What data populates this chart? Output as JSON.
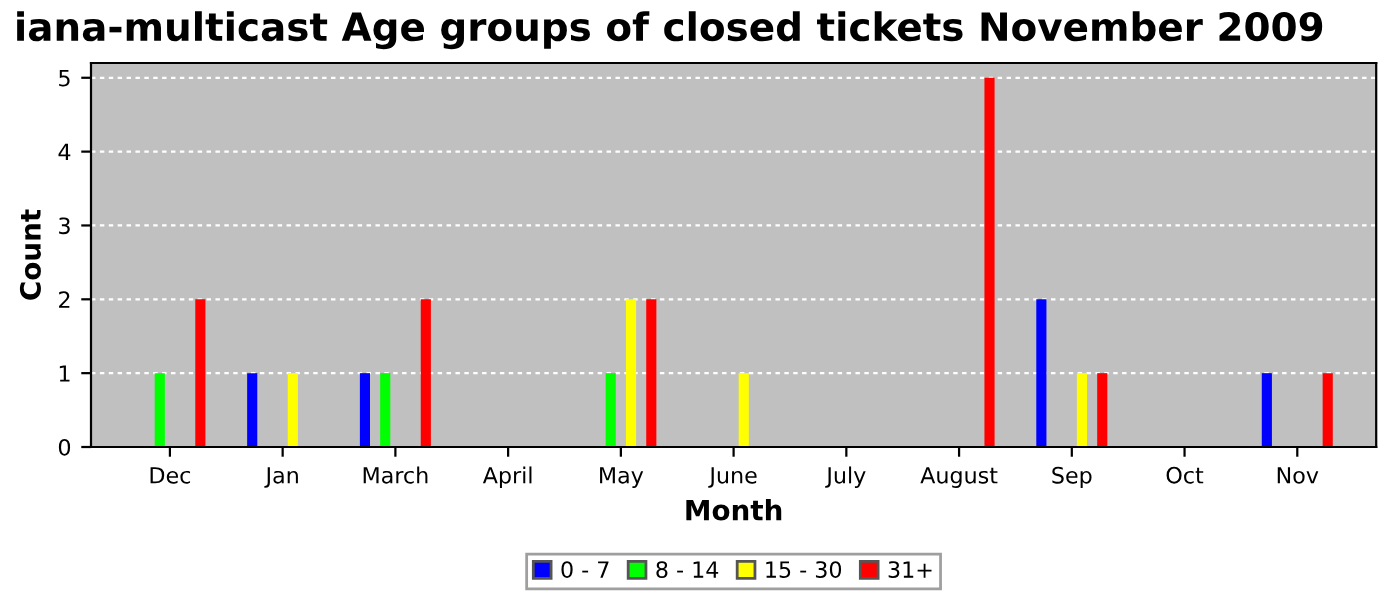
{
  "chart_data": {
    "type": "bar",
    "title": "iana-multicast Age groups of closed tickets November 2009",
    "xlabel": "Month",
    "ylabel": "Count",
    "categories": [
      "Dec",
      "Jan",
      "March",
      "April",
      "May",
      "June",
      "July",
      "August",
      "Sep",
      "Oct",
      "Nov"
    ],
    "series": [
      {
        "name": "0 - 7",
        "color": "#0000ff",
        "values": [
          0,
          1,
          1,
          0,
          0,
          0,
          0,
          0,
          2,
          0,
          1
        ]
      },
      {
        "name": "8 - 14",
        "color": "#00ff00",
        "values": [
          1,
          0,
          1,
          0,
          1,
          0,
          0,
          0,
          0,
          0,
          0
        ]
      },
      {
        "name": "15 - 30",
        "color": "#ffff00",
        "values": [
          0,
          1,
          0,
          0,
          2,
          1,
          0,
          0,
          1,
          0,
          0
        ]
      },
      {
        "name": "31+",
        "color": "#ff0000",
        "values": [
          2,
          0,
          2,
          0,
          2,
          0,
          0,
          5,
          1,
          0,
          1
        ]
      }
    ],
    "ylim": [
      0,
      5.2
    ],
    "yticks": [
      0,
      1,
      2,
      3,
      4,
      5
    ],
    "grid": "y",
    "legend": "bottom"
  }
}
